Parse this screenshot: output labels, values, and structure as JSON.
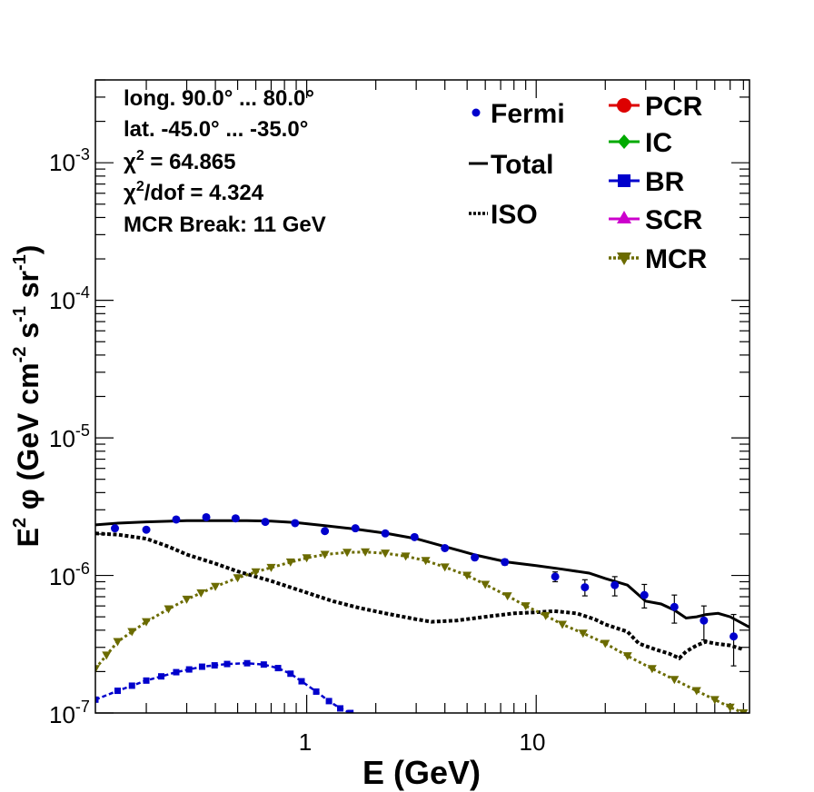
{
  "chart_data": {
    "type": "line",
    "x_scale": "log",
    "y_scale": "log",
    "xlim": [
      0.12,
      85
    ],
    "ylim": [
      1e-07,
      0.004
    ],
    "xlabel": "E (GeV)",
    "ylabel_parts": [
      "E",
      "2",
      " φ (GeV cm",
      "-2",
      " s",
      "-1",
      " sr",
      "-1",
      ")"
    ],
    "x_ticks": [
      {
        "value": 1,
        "label": "1"
      },
      {
        "value": 10,
        "label": "10"
      }
    ],
    "y_ticks": [
      {
        "value": 1e-07,
        "base": "10",
        "exp": "-7"
      },
      {
        "value": 1e-06,
        "base": "10",
        "exp": "-6"
      },
      {
        "value": 1e-05,
        "base": "10",
        "exp": "-5"
      },
      {
        "value": 0.0001,
        "base": "10",
        "exp": "-4"
      },
      {
        "value": 0.001,
        "base": "10",
        "exp": "-3"
      }
    ],
    "annotations": {
      "longitude": "long. 90.0° ... 80.0°",
      "latitude": "lat. -45.0° ... -35.0°",
      "chi2_pre": "χ",
      "chi2_exp": "2",
      "chi2_post": " = 64.865",
      "chi2dof_pre": "χ",
      "chi2dof_exp": "2",
      "chi2dof_post": "/dof = 4.324",
      "break": "MCR Break: 11 GeV"
    },
    "legend": [
      {
        "label": "Fermi",
        "color": "#0000cc",
        "marker": "circle",
        "style": "none"
      },
      {
        "label": "Total",
        "color": "#000000",
        "marker": "none",
        "style": "solid"
      },
      {
        "label": "ISO",
        "color": "#000000",
        "marker": "none",
        "style": "dotted"
      },
      {
        "label": "PCR",
        "color": "#dd0000",
        "marker": "circle",
        "style": "solid"
      },
      {
        "label": "IC",
        "color": "#00aa00",
        "marker": "diamond",
        "style": "solid"
      },
      {
        "label": "BR",
        "color": "#0000cc",
        "marker": "square",
        "style": "solid"
      },
      {
        "label": "SCR",
        "color": "#cc00cc",
        "marker": "triangle-up",
        "style": "solid"
      },
      {
        "label": "MCR",
        "color": "#6b6b00",
        "marker": "triangle-down",
        "style": "dotted"
      }
    ],
    "fermi": {
      "name": "Fermi",
      "color": "#0000cc",
      "x": [
        0.146,
        0.2,
        0.27,
        0.365,
        0.49,
        0.66,
        0.89,
        1.2,
        1.63,
        2.2,
        2.95,
        4.0,
        5.4,
        7.3,
        12.1,
        16.3,
        22,
        29.6,
        40,
        53.8,
        72.5
      ],
      "y": [
        2.2e-06,
        2.15e-06,
        2.55e-06,
        2.65e-06,
        2.6e-06,
        2.45e-06,
        2.4e-06,
        2.1e-06,
        2.2e-06,
        2.02e-06,
        1.9e-06,
        1.58e-06,
        1.35e-06,
        1.25e-06,
        9.8e-07,
        8.2e-07,
        8.5e-07,
        7.2e-07,
        5.9e-07,
        4.7e-07,
        3.6e-07
      ],
      "err_lo": [
        0,
        0,
        0,
        0,
        0,
        0,
        0,
        0,
        0,
        0,
        0,
        0,
        0,
        6e-08,
        8e-08,
        1.1e-07,
        1.4e-07,
        1.4e-07,
        1.4e-07,
        1.3e-07,
        1.4e-07
      ],
      "err_hi": [
        0,
        0,
        0,
        0,
        0,
        0,
        0,
        0,
        0,
        0,
        0,
        0,
        0,
        6e-08,
        8e-08,
        1.1e-07,
        1.3e-07,
        1.4e-07,
        1.3e-07,
        1.3e-07,
        1.6e-07
      ]
    },
    "series": [
      {
        "name": "Total",
        "color": "#000000",
        "style": "solid",
        "x": [
          0.12,
          0.15,
          0.2,
          0.3,
          0.4,
          0.55,
          0.7,
          0.9,
          1.2,
          1.6,
          2.2,
          3.0,
          4.0,
          5.5,
          7.5,
          10,
          13,
          17,
          20,
          25,
          30,
          35,
          40,
          45,
          50,
          55,
          62,
          70,
          85
        ],
        "y": [
          2.33e-06,
          2.4e-06,
          2.45e-06,
          2.5e-06,
          2.5e-06,
          2.5e-06,
          2.48e-06,
          2.42e-06,
          2.3e-06,
          2.18e-06,
          2.03e-06,
          1.85e-06,
          1.62e-06,
          1.4e-06,
          1.25e-06,
          1.18e-06,
          1.11e-06,
          1.04e-06,
          9.5e-07,
          8.5e-07,
          6.5e-07,
          6.2e-07,
          5.6e-07,
          4.9e-07,
          5e-07,
          5.2e-07,
          5.3e-07,
          5e-07,
          4.2e-07
        ]
      },
      {
        "name": "ISO",
        "color": "#000000",
        "style": "dotted",
        "x": [
          0.12,
          0.15,
          0.2,
          0.25,
          0.3,
          0.4,
          0.5,
          0.7,
          1.0,
          1.3,
          1.7,
          2.2,
          3.0,
          3.5,
          4.5,
          6,
          8,
          10,
          12,
          15,
          18,
          20,
          25,
          28,
          33,
          38,
          42,
          45,
          50,
          55,
          60,
          70,
          80
        ],
        "y": [
          2.02e-06,
          1.98e-06,
          1.85e-06,
          1.62e-06,
          1.42e-06,
          1.22e-06,
          1.07e-06,
          9.1e-07,
          7.5e-07,
          6.5e-07,
          5.8e-07,
          5.3e-07,
          4.8e-07,
          4.6e-07,
          4.7e-07,
          5e-07,
          5.3e-07,
          5.4e-07,
          5.5e-07,
          5.3e-07,
          4.8e-07,
          4.4e-07,
          3.9e-07,
          3.2e-07,
          2.9e-07,
          2.7e-07,
          2.5e-07,
          2.8e-07,
          3.1e-07,
          3.3e-07,
          3.2e-07,
          3.1e-07,
          2.9e-07
        ]
      },
      {
        "name": "BR",
        "color": "#0000cc",
        "style": "solid",
        "x": [
          0.12,
          0.15,
          0.2,
          0.27,
          0.35,
          0.45,
          0.55,
          0.65,
          0.75,
          0.85,
          0.95,
          1.1,
          1.25,
          1.4,
          1.55
        ],
        "y": [
          1.25e-07,
          1.45e-07,
          1.72e-07,
          1.98e-07,
          2.17e-07,
          2.27e-07,
          2.3e-07,
          2.25e-07,
          2.12e-07,
          1.93e-07,
          1.7e-07,
          1.43e-07,
          1.22e-07,
          1.08e-07,
          1e-07
        ]
      },
      {
        "name": "MCR",
        "color": "#6b6b00",
        "style": "dotted",
        "x": [
          0.12,
          0.15,
          0.2,
          0.25,
          0.3,
          0.4,
          0.5,
          0.6,
          0.7,
          0.85,
          1.0,
          1.2,
          1.5,
          1.8,
          2.2,
          2.7,
          3.3,
          4.0,
          5.0,
          6.0,
          7.5,
          9.0,
          11,
          13,
          16,
          20,
          25,
          32,
          40,
          50,
          60,
          70,
          80
        ],
        "y": [
          2.1e-07,
          3.3e-07,
          4.6e-07,
          5.7e-07,
          6.7e-07,
          8.3e-07,
          9.6e-07,
          1.06e-06,
          1.14e-06,
          1.25e-06,
          1.34e-06,
          1.42e-06,
          1.47e-06,
          1.48e-06,
          1.45e-06,
          1.38e-06,
          1.28e-06,
          1.15e-06,
          1e-06,
          8.6e-07,
          7.1e-07,
          6e-07,
          5.1e-07,
          4.4e-07,
          3.8e-07,
          3.2e-07,
          2.6e-07,
          2.1e-07,
          1.75e-07,
          1.45e-07,
          1.25e-07,
          1.1e-07,
          1e-07
        ]
      }
    ]
  }
}
